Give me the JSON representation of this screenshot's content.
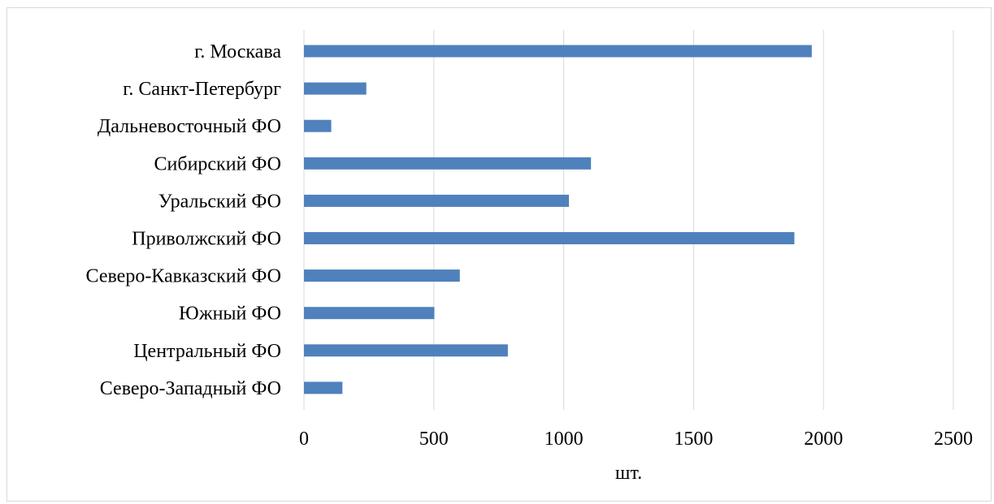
{
  "chart_data": {
    "type": "bar",
    "orientation": "horizontal",
    "categories": [
      "г. Москава",
      "г. Санкт-Петербург",
      "Дальневосточный ФО",
      "Сибирский ФО",
      "Уральский ФО",
      "Приволжский ФО",
      "Северо-Кавказский ФО",
      "Южный ФО",
      "Центральный ФО",
      "Северо-Западный ФО"
    ],
    "values": [
      1955,
      240,
      105,
      1105,
      1020,
      1888,
      600,
      502,
      785,
      148
    ],
    "title": "",
    "xlabel": "шт.",
    "ylabel": "",
    "xlim": [
      0,
      2500
    ],
    "xticks": [
      "0",
      "500",
      "1000",
      "1500",
      "2000",
      "2500"
    ],
    "grid": "vertical",
    "legend": "none",
    "bar_color": "#4f81bd",
    "grid_color": "#d9d9d9"
  }
}
